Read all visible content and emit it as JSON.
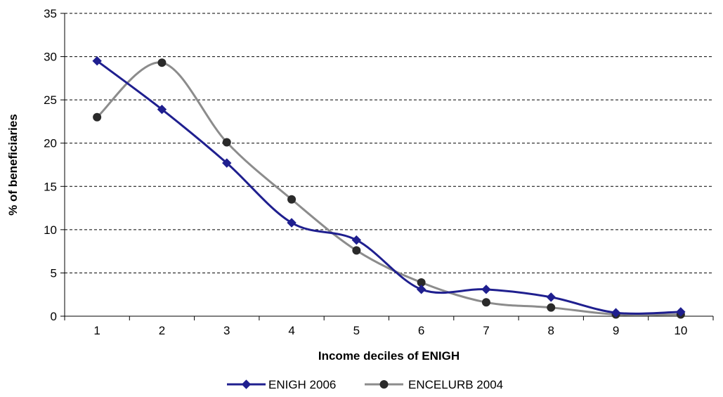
{
  "chart_data": {
    "type": "line",
    "title": "",
    "xlabel": "Income deciles of ENIGH",
    "ylabel": "% of beneficiaries",
    "categories": [
      "1",
      "2",
      "3",
      "4",
      "5",
      "6",
      "7",
      "8",
      "9",
      "10"
    ],
    "ylim": [
      0,
      35
    ],
    "yticks": [
      "0",
      "5",
      "10",
      "15",
      "20",
      "25",
      "30",
      "35"
    ],
    "grid": true,
    "legend_position": "bottom",
    "series": [
      {
        "name": "ENIGH 2006",
        "values": [
          29.5,
          23.9,
          17.7,
          10.8,
          8.8,
          3.1,
          3.1,
          2.2,
          0.4,
          0.5
        ],
        "color": "#1f1f8f",
        "marker": "diamond"
      },
      {
        "name": "ENCELURB 2004",
        "values": [
          23.0,
          29.3,
          20.1,
          13.5,
          7.6,
          3.9,
          1.6,
          1.0,
          0.2,
          0.2
        ],
        "color": "#8c8c8c",
        "marker": "circle"
      }
    ]
  }
}
